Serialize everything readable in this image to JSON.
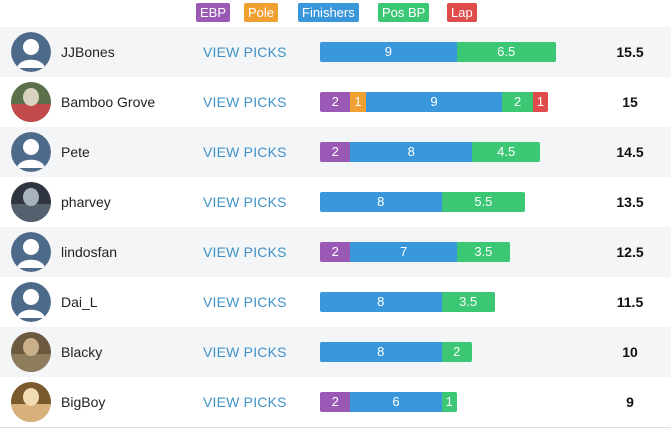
{
  "legend": {
    "items": [
      {
        "label": "EBP",
        "color": "#9b59b6"
      },
      {
        "label": "Pole",
        "color": "#f0a030"
      },
      {
        "label": "Finishers",
        "color": "#3a97dc"
      },
      {
        "label": "Pos BP",
        "color": "#3cc774"
      },
      {
        "label": "Lap",
        "color": "#e04b4b"
      }
    ]
  },
  "view_picks_label": "VIEW PICKS",
  "rows": [
    {
      "username": "JJBones",
      "avatar": "default-avatar-icon",
      "total": "15.5",
      "segments": [
        {
          "type": "Finishers",
          "label": "9",
          "value": 9
        },
        {
          "type": "Pos BP",
          "label": "6.5",
          "value": 6.5
        }
      ]
    },
    {
      "username": "Bamboo Grove",
      "avatar": "photo-avatar",
      "total": "15",
      "segments": [
        {
          "type": "EBP",
          "label": "2",
          "value": 2
        },
        {
          "type": "Pole",
          "label": "1",
          "value": 1
        },
        {
          "type": "Finishers",
          "label": "9",
          "value": 9
        },
        {
          "type": "Pos BP",
          "label": "2",
          "value": 2
        },
        {
          "type": "Lap",
          "label": "1",
          "value": 1
        }
      ]
    },
    {
      "username": "Pete",
      "avatar": "default-avatar-icon",
      "total": "14.5",
      "segments": [
        {
          "type": "EBP",
          "label": "2",
          "value": 2
        },
        {
          "type": "Finishers",
          "label": "8",
          "value": 8
        },
        {
          "type": "Pos BP",
          "label": "4.5",
          "value": 4.5
        }
      ]
    },
    {
      "username": "pharvey",
      "avatar": "photo-avatar",
      "total": "13.5",
      "segments": [
        {
          "type": "Finishers",
          "label": "8",
          "value": 8
        },
        {
          "type": "Pos BP",
          "label": "5.5",
          "value": 5.5
        }
      ]
    },
    {
      "username": "lindosfan",
      "avatar": "default-avatar-icon",
      "total": "12.5",
      "segments": [
        {
          "type": "EBP",
          "label": "2",
          "value": 2
        },
        {
          "type": "Finishers",
          "label": "7",
          "value": 7
        },
        {
          "type": "Pos BP",
          "label": "3.5",
          "value": 3.5
        }
      ]
    },
    {
      "username": "Dai_L",
      "avatar": "default-avatar-icon",
      "total": "11.5",
      "segments": [
        {
          "type": "Finishers",
          "label": "8",
          "value": 8
        },
        {
          "type": "Pos BP",
          "label": "3.5",
          "value": 3.5
        }
      ]
    },
    {
      "username": "Blacky",
      "avatar": "photo-avatar",
      "total": "10",
      "segments": [
        {
          "type": "Finishers",
          "label": "8",
          "value": 8
        },
        {
          "type": "Pos BP",
          "label": "2",
          "value": 2
        }
      ]
    },
    {
      "username": "BigBoy",
      "avatar": "photo-avatar",
      "total": "9",
      "segments": [
        {
          "type": "EBP",
          "label": "2",
          "value": 2
        },
        {
          "type": "Finishers",
          "label": "6",
          "value": 6
        },
        {
          "type": "Pos BP",
          "label": "1",
          "value": 1
        }
      ]
    }
  ]
}
